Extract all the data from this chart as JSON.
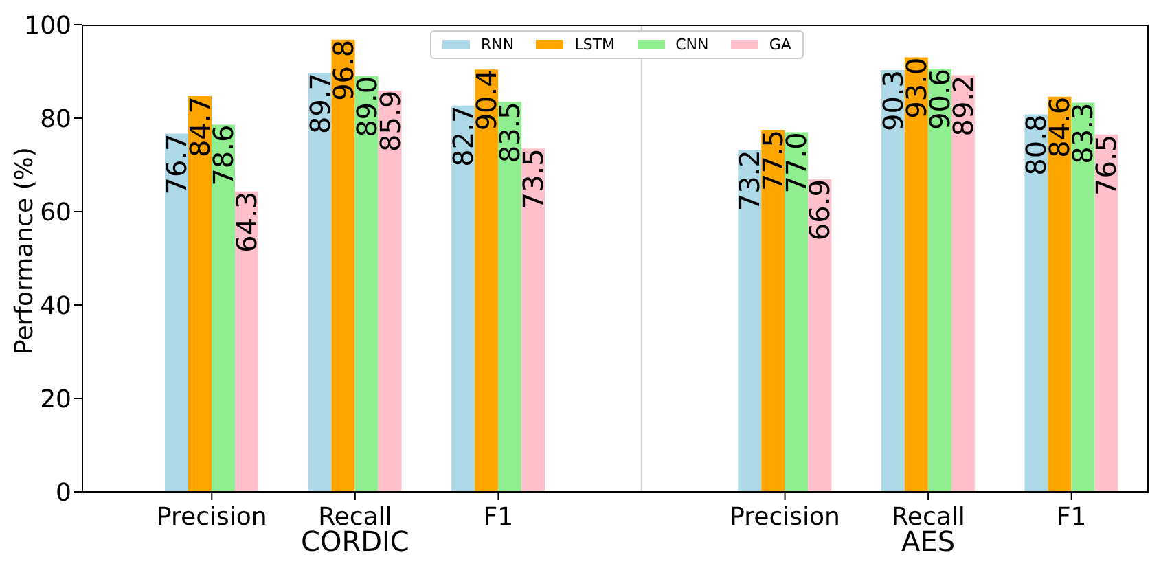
{
  "chart_data": {
    "type": "bar",
    "ylabel": "Performance (%)",
    "categories": [
      "Precision",
      "Recall",
      "F1",
      null,
      "Precision",
      "Recall",
      "F1"
    ],
    "series": [
      {
        "name": "RNN",
        "color": "#add8e6",
        "values": [
          76.7,
          89.7,
          82.7,
          null,
          73.2,
          90.3,
          80.8
        ],
        "value_labels": [
          "76.7",
          "89.7",
          "82.7",
          null,
          "73.2",
          "90.3",
          "80.8"
        ]
      },
      {
        "name": "LSTM",
        "color": "#ffa500",
        "values": [
          84.7,
          96.8,
          90.4,
          null,
          77.5,
          93.0,
          84.6
        ],
        "value_labels": [
          "84.7",
          "96.8",
          "90.4",
          null,
          "77.5",
          "93.0",
          "84.6"
        ]
      },
      {
        "name": "CNN",
        "color": "#90ee90",
        "values": [
          78.6,
          89.0,
          83.5,
          null,
          77.0,
          90.6,
          83.3
        ],
        "value_labels": [
          "78.6",
          "89.0",
          "83.5",
          null,
          "77.0",
          "90.6",
          "83.3"
        ]
      },
      {
        "name": "GA",
        "color": "#ffc0cb",
        "values": [
          64.3,
          85.9,
          73.5,
          null,
          66.9,
          89.2,
          76.5
        ],
        "value_labels": [
          "64.3",
          "85.9",
          "73.5",
          null,
          "66.9",
          "89.2",
          "76.5"
        ]
      }
    ],
    "ylim": [
      0,
      100
    ],
    "yticks": [
      0,
      20,
      40,
      60,
      80,
      100
    ],
    "legend": "top",
    "ref_lines": [
      {
        "axis": "x",
        "color": "#d3d3d3"
      }
    ],
    "annotations": [
      "CORDIC",
      "AES"
    ]
  }
}
